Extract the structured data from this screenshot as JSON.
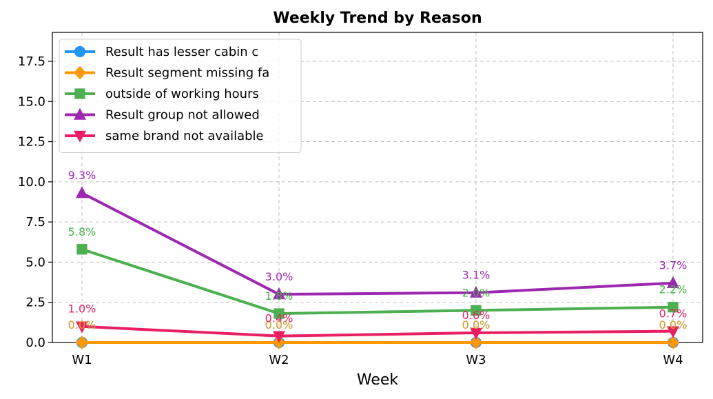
{
  "chart_data": {
    "type": "line",
    "title": "Weekly Trend by Reason",
    "xlabel": "Week",
    "ylabel": "",
    "categories": [
      "W1",
      "W2",
      "W3",
      "W4"
    ],
    "ylim": [
      0,
      19.3
    ],
    "yticks": [
      "0.0",
      "2.5",
      "5.0",
      "7.5",
      "10.0",
      "12.5",
      "15.0",
      "17.5"
    ],
    "ytick_values": [
      0,
      2.5,
      5,
      7.5,
      10,
      12.5,
      15,
      17.5
    ],
    "grid": true,
    "legend_position": "top-left",
    "series": [
      {
        "name": "Result has lesser cabin c",
        "values": [
          0.0,
          0.0,
          0.0,
          0.0
        ],
        "labels": [
          "0.0%",
          "0.0%",
          "0.0%",
          "0.0%"
        ],
        "color": "#2196F3",
        "marker": "circle"
      },
      {
        "name": "Result segment missing fa",
        "values": [
          0.0,
          0.0,
          0.0,
          0.0
        ],
        "labels": [
          "0.0%",
          "0.0%",
          "0.0%",
          "0.0%"
        ],
        "color": "#FF9800",
        "label_color": "#E6A020",
        "marker": "diamond"
      },
      {
        "name": "outside of working hours",
        "values": [
          5.8,
          1.8,
          2.0,
          2.2
        ],
        "labels": [
          "5.8%",
          "1.8%",
          "2.0%",
          "2.2%"
        ],
        "color": "#4CAF50",
        "marker": "square"
      },
      {
        "name": "Result group not allowed",
        "values": [
          9.3,
          3.0,
          3.1,
          3.7
        ],
        "labels": [
          "9.3%",
          "3.0%",
          "3.1%",
          "3.7%"
        ],
        "color": "#9C27B0",
        "marker": "triangle-up"
      },
      {
        "name": "same brand not available",
        "values": [
          1.0,
          0.4,
          0.6,
          0.7
        ],
        "labels": [
          "1.0%",
          "0.4%",
          "0.6%",
          "0.7%"
        ],
        "color": "#E91E63",
        "marker": "triangle-down"
      }
    ]
  }
}
